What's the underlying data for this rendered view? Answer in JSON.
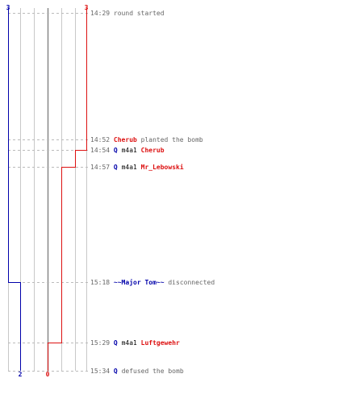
{
  "colors": {
    "ct": "#0000aa",
    "t": "#dd1111",
    "text": "#666666",
    "grid": "#c8c8c8",
    "center": "#888888",
    "dash": "#bbbbbb"
  },
  "round": {
    "ct_start": "3",
    "t_start": "3",
    "ct_end": "2",
    "t_end": "0"
  },
  "events": [
    {
      "time": "14:29",
      "parts": [
        {
          "text": "round started",
          "role": "plain"
        }
      ]
    },
    {
      "time": "14:52",
      "parts": [
        {
          "text": "Cherub",
          "role": "t"
        },
        {
          "text": " planted the bomb",
          "role": "plain"
        }
      ]
    },
    {
      "time": "14:54",
      "parts": [
        {
          "text": "Q",
          "role": "ct",
          "icon": "ct-player-icon"
        },
        {
          "text": " m4a1 ",
          "role": "weapon"
        },
        {
          "text": "Cherub",
          "role": "t"
        }
      ]
    },
    {
      "time": "14:57",
      "parts": [
        {
          "text": "Q",
          "role": "ct",
          "icon": "ct-player-icon"
        },
        {
          "text": " m4a1 ",
          "role": "weapon"
        },
        {
          "text": "Mr_Lebowski",
          "role": "t"
        }
      ]
    },
    {
      "time": "15:18",
      "parts": [
        {
          "text": "~~Major Tom~~",
          "role": "ct"
        },
        {
          "text": " disconnected",
          "role": "plain"
        }
      ]
    },
    {
      "time": "15:29",
      "parts": [
        {
          "text": "Q",
          "role": "ct",
          "icon": "ct-player-icon"
        },
        {
          "text": " m4a1 ",
          "role": "weapon"
        },
        {
          "text": "Luftgewehr",
          "role": "t"
        }
      ]
    },
    {
      "time": "15:34",
      "parts": [
        {
          "text": "Q",
          "role": "ct",
          "icon": "ct-player-icon"
        },
        {
          "text": " defused the bomb",
          "role": "plain"
        }
      ]
    }
  ]
}
